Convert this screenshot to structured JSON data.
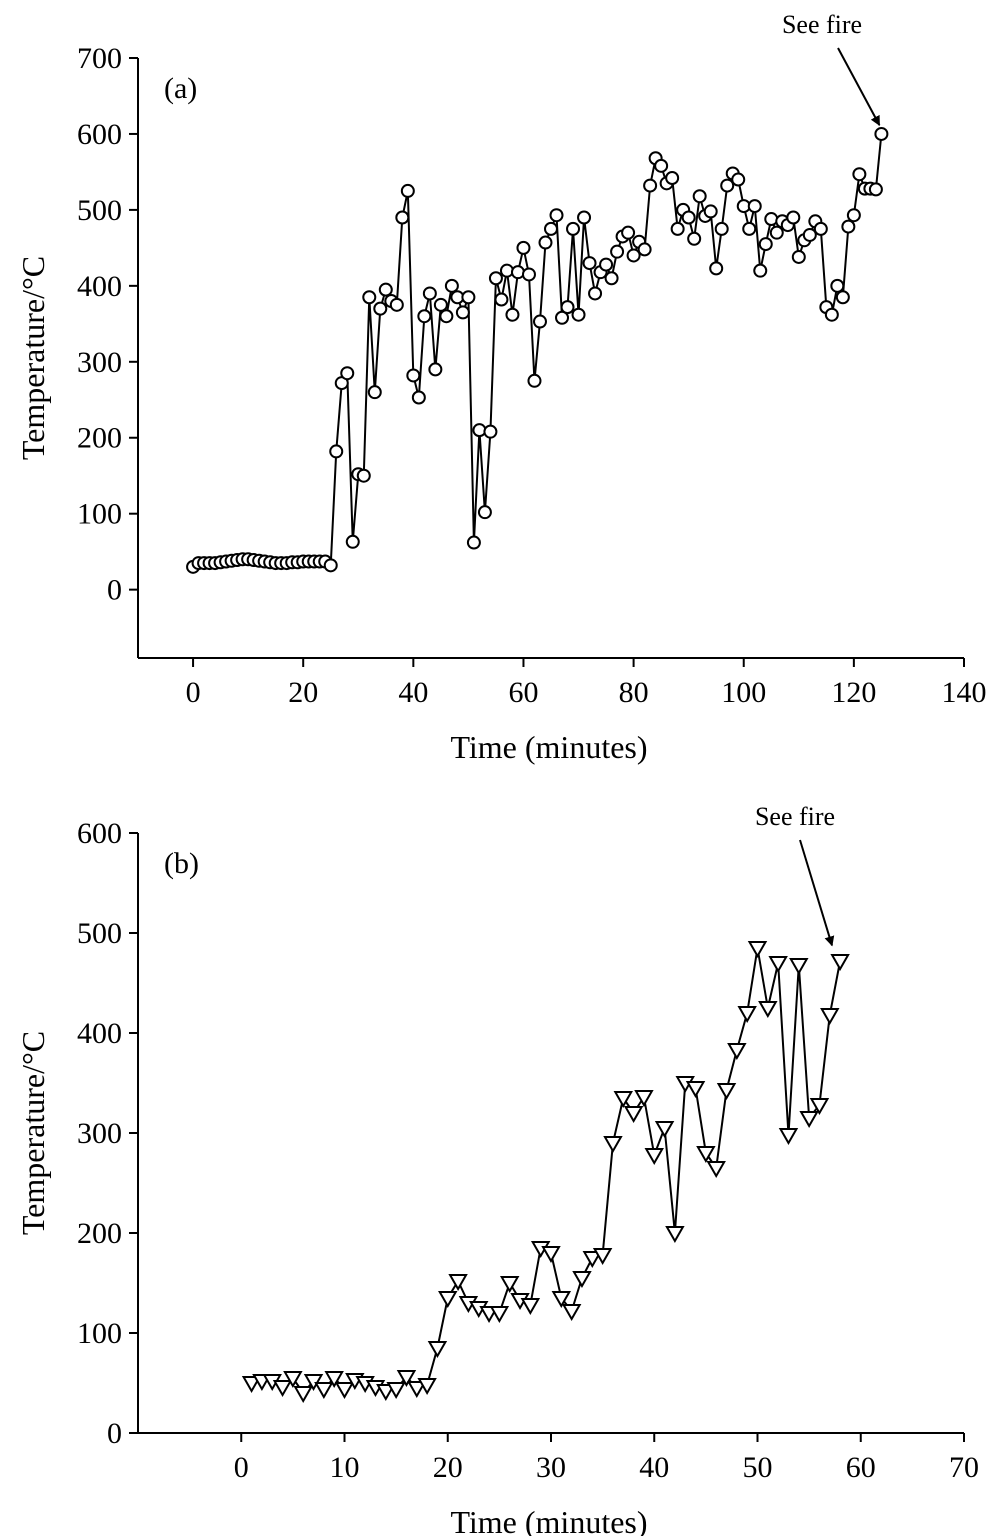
{
  "chart_data": [
    {
      "type": "line",
      "panel_label": "(a)",
      "xlabel": "Time (minutes)",
      "ylabel": "Temperature/°C",
      "xlim": [
        -10,
        140
      ],
      "ylim": [
        -90,
        700
      ],
      "xticks": [
        0,
        20,
        40,
        60,
        80,
        100,
        120,
        140
      ],
      "yticks": [
        0,
        100,
        200,
        300,
        400,
        500,
        600,
        700
      ],
      "marker": "circle",
      "annotation": {
        "text": "See fire",
        "target": [
          125.5,
          600
        ]
      },
      "series": [
        {
          "name": "Temperature",
          "x": [
            0,
            1,
            2,
            3,
            4,
            5,
            6,
            7,
            8,
            9,
            10,
            11,
            12,
            13,
            14,
            15,
            16,
            17,
            18,
            19,
            20,
            21,
            22,
            23,
            24,
            25,
            26,
            27,
            28,
            29,
            30,
            31,
            32,
            33,
            34,
            35,
            36,
            37,
            38,
            39,
            40,
            41,
            42,
            43,
            44,
            45,
            46,
            47,
            48,
            49,
            50,
            51,
            52,
            53,
            54,
            55,
            56,
            57,
            58,
            59,
            60,
            61,
            62,
            63,
            64,
            65,
            66,
            67,
            68,
            69,
            70,
            71,
            72,
            73,
            74,
            75,
            76,
            77,
            78,
            79,
            80,
            81,
            82,
            83,
            84,
            85,
            86,
            87,
            88,
            89,
            90,
            91,
            92,
            93,
            94,
            95,
            96,
            97,
            98,
            99,
            100,
            101,
            102,
            103,
            104,
            105,
            106,
            107,
            108,
            109,
            110,
            111,
            112,
            113,
            114,
            115,
            116,
            117,
            118,
            119,
            120,
            121,
            122,
            123,
            124,
            125
          ],
          "y": [
            30,
            35,
            35,
            35,
            35,
            36,
            37,
            38,
            39,
            40,
            40,
            39,
            38,
            37,
            36,
            35,
            35,
            35,
            36,
            36,
            37,
            37,
            37,
            37,
            37,
            32,
            182,
            272,
            285,
            63,
            152,
            150,
            385,
            260,
            370,
            395,
            380,
            375,
            490,
            525,
            282,
            253,
            360,
            390,
            290,
            375,
            360,
            400,
            385,
            365,
            385,
            62,
            210,
            102,
            208,
            410,
            382,
            420,
            362,
            418,
            450,
            415,
            275,
            353,
            457,
            475,
            493,
            358,
            372,
            475,
            362,
            490,
            430,
            390,
            418,
            428,
            410,
            445,
            465,
            470,
            440,
            458,
            448,
            532,
            568,
            558,
            535,
            542,
            475,
            500,
            490,
            462,
            518,
            492,
            498,
            423,
            475,
            532,
            548,
            540,
            505,
            475,
            505,
            420,
            455,
            488,
            470,
            485,
            480,
            490,
            438,
            460,
            467,
            485,
            475,
            372,
            362,
            400,
            385,
            478,
            493,
            547,
            528,
            528,
            527,
            600
          ]
        }
      ]
    },
    {
      "type": "line",
      "panel_label": "(b)",
      "xlabel": "Time (minutes)",
      "ylabel": "Temperature/°C",
      "xlim": [
        -10,
        70
      ],
      "ylim": [
        0,
        600
      ],
      "xticks": [
        0,
        10,
        20,
        30,
        40,
        50,
        60,
        70
      ],
      "yticks": [
        0,
        100,
        200,
        300,
        400,
        500,
        600
      ],
      "marker": "triangle-down",
      "annotation": {
        "text": "See fire",
        "target": [
          57.5,
          478
        ]
      },
      "series": [
        {
          "name": "Temperature",
          "x": [
            1,
            2,
            3,
            4,
            5,
            6,
            7,
            8,
            9,
            10,
            11,
            12,
            13,
            14,
            15,
            16,
            17,
            18,
            19,
            20,
            21,
            22,
            23,
            24,
            25,
            26,
            27,
            28,
            29,
            30,
            31,
            32,
            33,
            34,
            35,
            36,
            37,
            38,
            39,
            40,
            41,
            42,
            43,
            44,
            45,
            46,
            47,
            48,
            49,
            50,
            51,
            52,
            53,
            54,
            55,
            56,
            57,
            58
          ],
          "y": [
            50,
            52,
            52,
            46,
            55,
            40,
            52,
            44,
            55,
            44,
            53,
            50,
            46,
            42,
            44,
            56,
            45,
            48,
            85,
            135,
            152,
            130,
            125,
            120,
            120,
            150,
            133,
            128,
            185,
            180,
            135,
            122,
            155,
            175,
            178,
            290,
            335,
            320,
            336,
            278,
            305,
            200,
            350,
            345,
            280,
            265,
            343,
            383,
            420,
            485,
            425,
            470,
            298,
            468,
            315,
            328,
            418,
            472
          ]
        }
      ]
    }
  ]
}
